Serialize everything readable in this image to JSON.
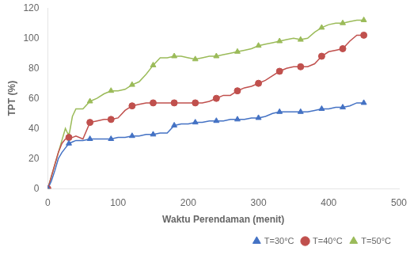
{
  "chart_data": {
    "type": "line",
    "title": "",
    "xlabel": "Waktu Perendaman (menit)",
    "ylabel": "TPT (%)",
    "xlim": [
      0,
      500
    ],
    "ylim": [
      0,
      120
    ],
    "xticks": [
      0,
      100,
      200,
      300,
      400,
      500
    ],
    "yticks": [
      0,
      20,
      40,
      60,
      80,
      100,
      120
    ],
    "grid": false,
    "legend": "lower right",
    "x": [
      0,
      5,
      10,
      15,
      20,
      25,
      30,
      35,
      40,
      50,
      60,
      70,
      80,
      90,
      100,
      110,
      120,
      130,
      140,
      150,
      160,
      170,
      180,
      190,
      200,
      210,
      220,
      230,
      240,
      250,
      260,
      270,
      280,
      290,
      300,
      310,
      320,
      330,
      340,
      350,
      360,
      370,
      380,
      390,
      400,
      410,
      420,
      430,
      440,
      450
    ],
    "marker_x": [
      0,
      30,
      60,
      90,
      120,
      150,
      180,
      210,
      240,
      270,
      300,
      330,
      360,
      390,
      420,
      450
    ],
    "series": [
      {
        "name": "T=30°C",
        "color": "#4472C4",
        "marker": "triangle",
        "values": [
          0,
          5,
          12,
          20,
          24,
          27,
          30,
          31,
          32,
          32,
          33,
          33,
          33,
          33,
          34,
          34,
          35,
          35,
          36,
          36,
          37,
          37,
          42,
          43,
          43,
          44,
          44,
          45,
          45,
          45,
          46,
          46,
          46,
          47,
          47,
          48,
          50,
          51,
          51,
          51,
          51,
          51,
          52,
          53,
          53,
          54,
          54,
          55,
          57,
          57
        ],
        "marker_values": [
          0,
          30,
          33,
          33,
          35,
          36,
          42,
          44,
          45,
          46,
          47,
          51,
          51,
          53,
          54,
          57
        ]
      },
      {
        "name": "T=40°C",
        "color": "#C0504D",
        "marker": "circle",
        "values": [
          0,
          8,
          16,
          24,
          30,
          33,
          34,
          34,
          35,
          33,
          44,
          45,
          46,
          46,
          47,
          52,
          55,
          56,
          57,
          57,
          57,
          57,
          57,
          57,
          57,
          57,
          57,
          58,
          60,
          62,
          62,
          65,
          67,
          68,
          70,
          72,
          75,
          78,
          80,
          81,
          81,
          81,
          83,
          88,
          91,
          92,
          93,
          98,
          102,
          102
        ],
        "marker_values": [
          0,
          34,
          44,
          46,
          55,
          57,
          57,
          57,
          60,
          65,
          70,
          78,
          81,
          88,
          93,
          102
        ]
      },
      {
        "name": "T=50°C",
        "color": "#9BBB59",
        "marker": "triangle",
        "values": [
          0,
          8,
          16,
          24,
          32,
          40,
          35,
          48,
          53,
          53,
          58,
          60,
          63,
          65,
          65,
          66,
          69,
          71,
          76,
          82,
          87,
          87,
          88,
          88,
          87,
          86,
          87,
          88,
          88,
          89,
          90,
          91,
          92,
          93,
          95,
          96,
          97,
          98,
          99,
          100,
          99,
          100,
          104,
          107,
          109,
          110,
          110,
          111,
          112,
          112
        ],
        "marker_values": [
          0,
          35,
          58,
          65,
          69,
          82,
          88,
          86,
          88,
          91,
          95,
          98,
          99,
          107,
          110,
          112
        ]
      }
    ]
  }
}
